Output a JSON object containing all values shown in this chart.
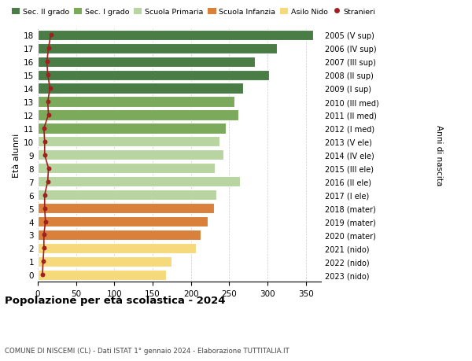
{
  "ages": [
    18,
    17,
    16,
    15,
    14,
    13,
    12,
    11,
    10,
    9,
    8,
    7,
    6,
    5,
    4,
    3,
    2,
    1,
    0
  ],
  "right_labels": [
    "2005 (V sup)",
    "2006 (IV sup)",
    "2007 (III sup)",
    "2008 (II sup)",
    "2009 (I sup)",
    "2010 (III med)",
    "2011 (II med)",
    "2012 (I med)",
    "2013 (V ele)",
    "2014 (IV ele)",
    "2015 (III ele)",
    "2016 (II ele)",
    "2017 (I ele)",
    "2018 (mater)",
    "2019 (mater)",
    "2020 (mater)",
    "2021 (nido)",
    "2022 (nido)",
    "2023 (nido)"
  ],
  "bar_values": [
    360,
    312,
    284,
    302,
    268,
    257,
    262,
    246,
    237,
    243,
    231,
    264,
    233,
    230,
    222,
    213,
    207,
    175,
    168
  ],
  "bar_colors": [
    "#4a7c45",
    "#4a7c45",
    "#4a7c45",
    "#4a7c45",
    "#4a7c45",
    "#7aaa5a",
    "#7aaa5a",
    "#7aaa5a",
    "#b8d4a0",
    "#b8d4a0",
    "#b8d4a0",
    "#b8d4a0",
    "#b8d4a0",
    "#d9813a",
    "#d9813a",
    "#d9813a",
    "#f5d97a",
    "#f5d97a",
    "#f5d97a"
  ],
  "stranieri_x": [
    17,
    14,
    12,
    13,
    16,
    13,
    14,
    8,
    9,
    9,
    14,
    13,
    9,
    9,
    10,
    8,
    8,
    7,
    6
  ],
  "legend_labels": [
    "Sec. II grado",
    "Sec. I grado",
    "Scuola Primaria",
    "Scuola Infanzia",
    "Asilo Nido",
    "Stranieri"
  ],
  "legend_colors": [
    "#4a7c45",
    "#7aaa5a",
    "#b8d4a0",
    "#d9813a",
    "#f5d97a",
    "#a02020"
  ],
  "title": "Popolazione per età scolastica - 2024",
  "subtitle": "COMUNE DI NISCEMI (CL) - Dati ISTAT 1° gennaio 2024 - Elaborazione TUTTITALIA.IT",
  "ylabel_left": "Età alunni",
  "ylabel_right": "Anni di nascita",
  "xlim": [
    0,
    370
  ],
  "xticks": [
    0,
    50,
    100,
    150,
    200,
    250,
    300,
    350
  ],
  "background_color": "#ffffff",
  "grid_color": "#cccccc"
}
